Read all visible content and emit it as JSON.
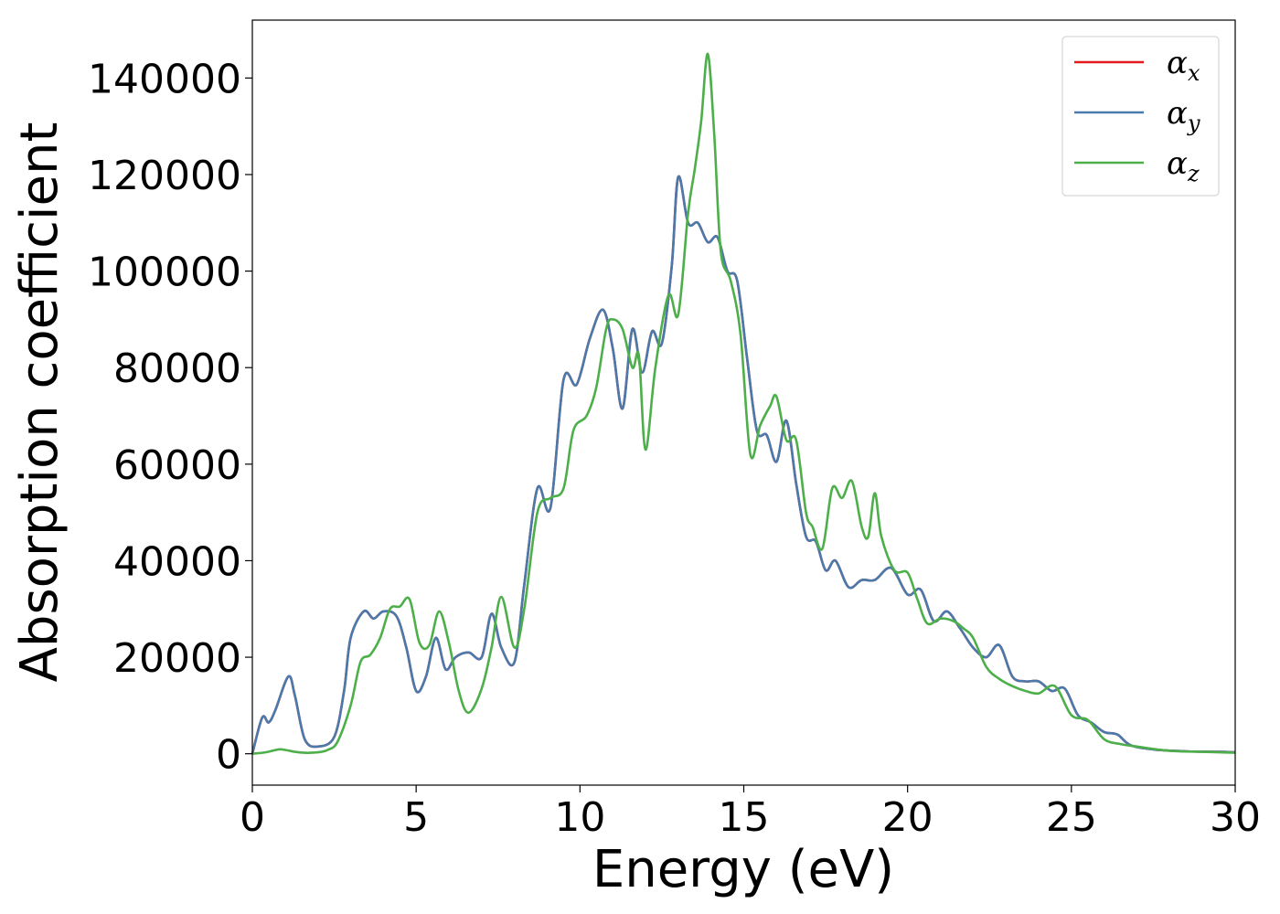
{
  "chart_data": {
    "type": "line",
    "xlabel": "Energy (eV)",
    "ylabel": "Absorption coefficient",
    "xlim": [
      0,
      30
    ],
    "ylim": [
      -6500,
      152000
    ],
    "xticks": [
      0,
      5,
      10,
      15,
      20,
      25,
      30
    ],
    "xtick_labels": [
      "0",
      "5",
      "10",
      "15",
      "20",
      "25",
      "30"
    ],
    "yticks": [
      0,
      20000,
      40000,
      60000,
      80000,
      100000,
      120000,
      140000
    ],
    "ytick_labels": [
      "0",
      "20000",
      "40000",
      "60000",
      "80000",
      "100000",
      "120000",
      "140000"
    ],
    "grid": false,
    "legend_position": "top-right",
    "series": [
      {
        "name": "α",
        "subscript": "x",
        "color": "#e41a1c",
        "x": [
          0,
          0.3,
          0.5,
          0.7,
          1.1,
          1.3,
          1.6,
          2.0,
          2.5,
          2.8,
          3.0,
          3.4,
          3.7,
          4.0,
          4.4,
          4.7,
          5.0,
          5.3,
          5.6,
          5.9,
          6.2,
          6.6,
          7.0,
          7.3,
          7.6,
          8.0,
          8.3,
          8.7,
          9.1,
          9.5,
          9.9,
          10.3,
          10.7,
          11.0,
          11.3,
          11.6,
          11.9,
          12.2,
          12.5,
          12.8,
          13.0,
          13.3,
          13.6,
          13.9,
          14.2,
          14.5,
          14.8,
          15.1,
          15.4,
          15.7,
          16.0,
          16.3,
          16.6,
          16.9,
          17.2,
          17.5,
          17.8,
          18.2,
          18.6,
          19.0,
          19.5,
          20.0,
          20.4,
          20.8,
          21.2,
          21.6,
          22.0,
          22.4,
          22.8,
          23.2,
          23.6,
          24.0,
          24.4,
          24.8,
          25.2,
          25.6,
          26.0,
          26.4,
          26.8,
          27.5,
          28.5,
          29.5,
          30
        ],
        "values": [
          0,
          7500,
          6500,
          9000,
          16000,
          12000,
          3000,
          1500,
          3500,
          13000,
          24000,
          29500,
          28000,
          29500,
          28500,
          22000,
          13000,
          16000,
          24000,
          17500,
          20000,
          21000,
          20000,
          29000,
          22000,
          19000,
          35000,
          55000,
          51000,
          77500,
          76500,
          86000,
          92000,
          84000,
          71500,
          88000,
          79000,
          87500,
          85000,
          101000,
          119500,
          110000,
          110000,
          106000,
          107000,
          100000,
          98000,
          82000,
          67000,
          66000,
          60500,
          69000,
          56000,
          45000,
          44000,
          38000,
          40000,
          34500,
          36000,
          36000,
          38500,
          33000,
          34000,
          27500,
          29500,
          26000,
          22000,
          20000,
          22500,
          16000,
          15000,
          15000,
          13000,
          13500,
          8000,
          6500,
          4500,
          4000,
          1800,
          900,
          500,
          400,
          300
        ]
      },
      {
        "name": "α",
        "subscript": "y",
        "color": "#4a7aab",
        "x": [
          0,
          0.3,
          0.5,
          0.7,
          1.1,
          1.3,
          1.6,
          2.0,
          2.5,
          2.8,
          3.0,
          3.4,
          3.7,
          4.0,
          4.4,
          4.7,
          5.0,
          5.3,
          5.6,
          5.9,
          6.2,
          6.6,
          7.0,
          7.3,
          7.6,
          8.0,
          8.3,
          8.7,
          9.1,
          9.5,
          9.9,
          10.3,
          10.7,
          11.0,
          11.3,
          11.6,
          11.9,
          12.2,
          12.5,
          12.8,
          13.0,
          13.3,
          13.6,
          13.9,
          14.2,
          14.5,
          14.8,
          15.1,
          15.4,
          15.7,
          16.0,
          16.3,
          16.6,
          16.9,
          17.2,
          17.5,
          17.8,
          18.2,
          18.6,
          19.0,
          19.5,
          20.0,
          20.4,
          20.8,
          21.2,
          21.6,
          22.0,
          22.4,
          22.8,
          23.2,
          23.6,
          24.0,
          24.4,
          24.8,
          25.2,
          25.6,
          26.0,
          26.4,
          26.8,
          27.5,
          28.5,
          29.5,
          30
        ],
        "values": [
          0,
          7500,
          6500,
          9000,
          16000,
          12000,
          3000,
          1500,
          3500,
          13000,
          24000,
          29500,
          28000,
          29500,
          28500,
          22000,
          13000,
          16000,
          24000,
          17500,
          20000,
          21000,
          20000,
          29000,
          22000,
          19000,
          35000,
          55000,
          51000,
          77500,
          76500,
          86000,
          92000,
          84000,
          71500,
          88000,
          79000,
          87500,
          85000,
          101000,
          119500,
          110000,
          110000,
          106000,
          107000,
          100000,
          98000,
          82000,
          67000,
          66000,
          60500,
          69000,
          56000,
          45000,
          44000,
          38000,
          40000,
          34500,
          36000,
          36000,
          38500,
          33000,
          34000,
          27500,
          29500,
          26000,
          22000,
          20000,
          22500,
          16000,
          15000,
          15000,
          13000,
          13500,
          8000,
          6500,
          4500,
          4000,
          1800,
          900,
          500,
          400,
          300
        ]
      },
      {
        "name": "α",
        "subscript": "z",
        "color": "#4daf4a",
        "x": [
          0,
          0.4,
          0.8,
          1.0,
          1.3,
          1.6,
          2.0,
          2.3,
          2.6,
          3.0,
          3.3,
          3.6,
          3.9,
          4.2,
          4.5,
          4.8,
          5.1,
          5.4,
          5.7,
          6.0,
          6.3,
          6.6,
          7.0,
          7.3,
          7.6,
          8.0,
          8.3,
          8.7,
          9.1,
          9.5,
          9.8,
          10.2,
          10.5,
          10.8,
          11.0,
          11.3,
          11.6,
          11.8,
          12.0,
          12.3,
          12.7,
          13.0,
          13.3,
          13.5,
          13.7,
          13.9,
          14.1,
          14.3,
          14.6,
          14.9,
          15.2,
          15.5,
          15.8,
          16.0,
          16.3,
          16.6,
          16.9,
          17.1,
          17.4,
          17.7,
          18.0,
          18.3,
          18.6,
          18.8,
          19.0,
          19.2,
          19.6,
          20.0,
          20.3,
          20.6,
          21.0,
          21.4,
          21.7,
          22.0,
          22.4,
          22.8,
          23.2,
          23.6,
          24.0,
          24.5,
          25.0,
          25.5,
          26.0,
          26.5,
          27.0,
          28.0,
          29.0,
          30
        ],
        "values": [
          0,
          300,
          900,
          800,
          400,
          200,
          300,
          800,
          2500,
          10000,
          19000,
          20500,
          24000,
          30000,
          30500,
          32000,
          23000,
          22500,
          29500,
          23000,
          13000,
          8500,
          13500,
          22000,
          32500,
          22000,
          30000,
          50000,
          53000,
          55000,
          67000,
          70000,
          76000,
          88000,
          90000,
          88000,
          80000,
          82500,
          63000,
          80000,
          95000,
          91000,
          112000,
          121000,
          131000,
          145000,
          128000,
          104000,
          98000,
          87000,
          62000,
          68000,
          72000,
          74000,
          65000,
          65000,
          50000,
          47000,
          42500,
          55000,
          53000,
          56500,
          47000,
          45000,
          54000,
          45000,
          38000,
          37500,
          32000,
          27000,
          28000,
          27500,
          26000,
          24000,
          18000,
          15500,
          14000,
          13000,
          12500,
          14000,
          8000,
          7000,
          3000,
          2000,
          1500,
          600,
          400,
          200
        ]
      }
    ]
  }
}
